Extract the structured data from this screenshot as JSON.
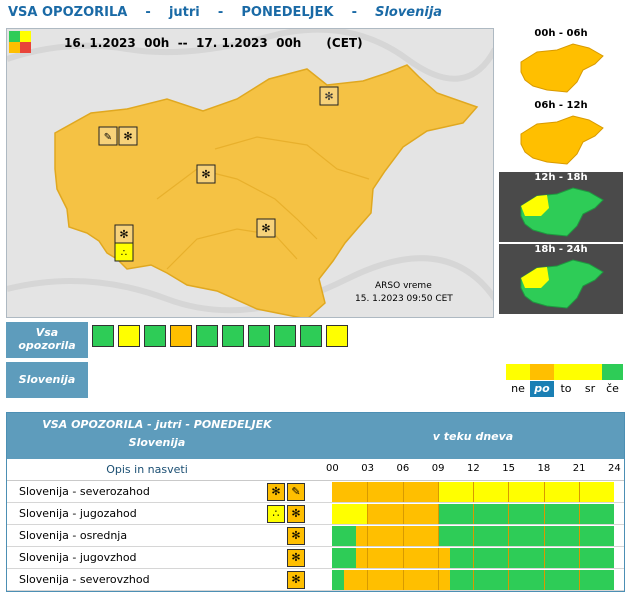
{
  "header": {
    "part1": "VSA OPOZORILA",
    "sep1": "-",
    "part2": "jutri",
    "sep2": "-",
    "part3": "PONEDELJEK",
    "sep3": "-",
    "part4": "Slovenija"
  },
  "map": {
    "date_range": "16. 1.2023  00h  --  17. 1.2023  00h      (CET)",
    "credit_line1": "ARSO vreme",
    "credit_line2": "15. 1.2023  09:50 CET"
  },
  "timeslots": [
    {
      "label": "00h - 06h"
    },
    {
      "label": "06h - 12h"
    },
    {
      "label": "12h - 18h"
    },
    {
      "label": "18h - 24h"
    }
  ],
  "legend_row": {
    "all_warnings_line1": "Vsa",
    "all_warnings_line2": "opozorila",
    "region_label": "Slovenija",
    "icons": [
      "wind-icon",
      "rain-icon",
      "thunderstorm-icon",
      "snow-icon",
      "fog-icon",
      "high-temperature-icon",
      "low-temperature-icon",
      "coastal-event-icon",
      "avalanche-icon",
      "snow-rain-icon"
    ]
  },
  "days": [
    {
      "label": "ne",
      "color": "#ffff00",
      "active": false
    },
    {
      "label": "po",
      "color": "#ffbf00",
      "active": true
    },
    {
      "label": "to",
      "color": "#ffff00",
      "active": false
    },
    {
      "label": "sr",
      "color": "#ffff00",
      "active": false
    },
    {
      "label": "če",
      "color": "#2ecc57",
      "active": false
    }
  ],
  "table": {
    "title_line1": "VSA OPOZORILA - jutri - PONEDELJEK",
    "title_line2": "Slovenija",
    "timeline_title": "v teku dneva",
    "col_desc": "Opis in nasveti",
    "hours": [
      "00",
      "03",
      "06",
      "09",
      "12",
      "15",
      "18",
      "21",
      "24"
    ],
    "rows": [
      {
        "name": "Slovenija - severozahod",
        "icons": [
          "snow-icon",
          "snow-rain-icon"
        ],
        "levels": [
          [
            "orange",
            0,
            9
          ],
          [
            "yellow",
            9,
            24
          ]
        ]
      },
      {
        "name": "Slovenija - jugozahod",
        "icons": [
          "rain-icon",
          "snow-icon"
        ],
        "levels": [
          [
            "yellow",
            0,
            3
          ],
          [
            "orange",
            3,
            9
          ],
          [
            "green",
            9,
            24
          ]
        ]
      },
      {
        "name": "Slovenija - osrednja",
        "icons": [
          "snow-icon"
        ],
        "levels": [
          [
            "green",
            0,
            2
          ],
          [
            "orange",
            2,
            9
          ],
          [
            "green",
            9,
            24
          ]
        ]
      },
      {
        "name": "Slovenija - jugovzhod",
        "icons": [
          "snow-icon"
        ],
        "levels": [
          [
            "green",
            0,
            2
          ],
          [
            "orange",
            2,
            10
          ],
          [
            "green",
            10,
            24
          ]
        ]
      },
      {
        "name": "Slovenija - severovzhod",
        "icons": [
          "snow-icon"
        ],
        "levels": [
          [
            "green",
            0,
            1
          ],
          [
            "orange",
            1,
            10
          ],
          [
            "green",
            10,
            24
          ]
        ]
      }
    ]
  },
  "colors": {
    "orange": "#ffbf00",
    "yellow": "#ffff00",
    "green": "#2ecc57",
    "header_blue": "#5e9cbc",
    "title_blue": "#1a6aa6"
  }
}
